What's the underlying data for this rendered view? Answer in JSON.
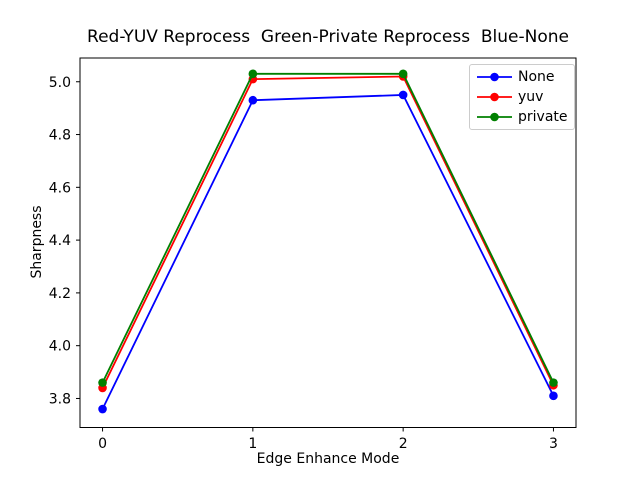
{
  "figure": {
    "background": "#ffffff",
    "axis_color": "#000000"
  },
  "chart_data": {
    "type": "line",
    "title": "Red-YUV Reprocess  Green-Private Reprocess  Blue-None",
    "xlabel": "Edge Enhance Mode",
    "ylabel": "Sharpness",
    "x": [
      0,
      1,
      2,
      3
    ],
    "series": [
      {
        "name": "None",
        "color": "#0000ff",
        "marker": "circle",
        "values": [
          3.76,
          4.93,
          4.95,
          3.81
        ]
      },
      {
        "name": "yuv",
        "color": "#ff0000",
        "marker": "circle",
        "values": [
          3.84,
          5.01,
          5.02,
          3.85
        ]
      },
      {
        "name": "private",
        "color": "#008000",
        "marker": "circle",
        "values": [
          3.86,
          5.03,
          5.03,
          3.86
        ]
      }
    ],
    "xlim": [
      -0.15,
      3.15
    ],
    "ylim": [
      3.69,
      5.09
    ],
    "xticks": {
      "values": [
        0,
        1,
        2,
        3
      ],
      "labels": [
        "0",
        "1",
        "2",
        "3"
      ]
    },
    "yticks": {
      "values": [
        3.8,
        4.0,
        4.2,
        4.4,
        4.6,
        4.8,
        5.0
      ],
      "labels": [
        "3.8",
        "4.0",
        "4.2",
        "4.4",
        "4.6",
        "4.8",
        "5.0"
      ]
    },
    "grid": false,
    "legend": {
      "position": "upper right",
      "entries": [
        "None",
        "yuv",
        "private"
      ]
    }
  }
}
